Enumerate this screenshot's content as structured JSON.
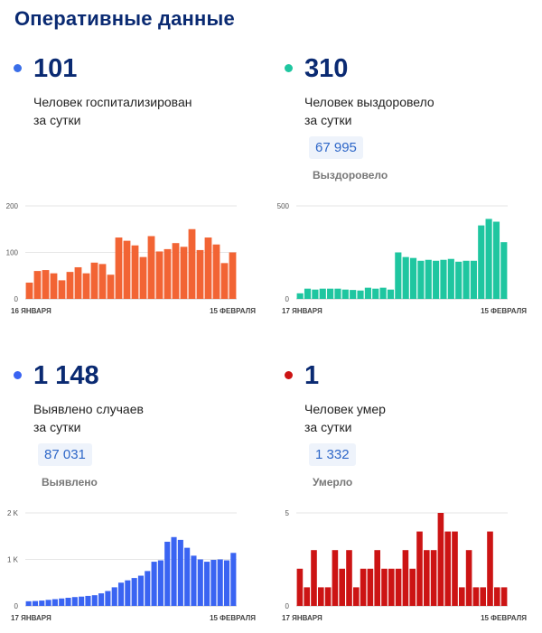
{
  "header": {
    "title": "Оперативные данные"
  },
  "panels": [
    {
      "id": "hospitalized",
      "number": "101",
      "caption_line1": "Человек госпитализирован",
      "caption_line2": "за сутки",
      "color": "#f26434",
      "dot_color": "#3a6ee8"
    },
    {
      "id": "recovered",
      "number": "310",
      "caption_line1": "Человек выздоровело",
      "caption_line2": "за сутки",
      "total": "67 995",
      "total_label": "Выздоровело",
      "color": "#1fc6a0",
      "dot_color": "#1fc6a0"
    },
    {
      "id": "cases",
      "number": "1 148",
      "caption_line1": "Выявлено случаев",
      "caption_line2": "за сутки",
      "total": "87 031",
      "total_label": "Выявлено",
      "color": "#3a64f2",
      "dot_color": "#3a64f2"
    },
    {
      "id": "deaths",
      "number": "1",
      "caption_line1": "Человек умер",
      "caption_line2": "за сутки",
      "total": "1 332",
      "total_label": "Умерло",
      "color": "#cc1414",
      "dot_color": "#cc1414"
    }
  ],
  "chart_data": [
    {
      "type": "bar",
      "yticks": [
        0,
        100,
        200
      ],
      "ytick_labels": [
        "0",
        "100",
        "200"
      ],
      "ylim": [
        0,
        200
      ],
      "x_start_label": "16 ЯНВАРЯ",
      "x_end_label": "15 ФЕВРАЛЯ",
      "values": [
        35,
        60,
        62,
        55,
        40,
        58,
        68,
        55,
        78,
        75,
        52,
        132,
        125,
        115,
        90,
        135,
        102,
        107,
        120,
        112,
        150,
        105,
        132,
        117,
        77,
        100
      ]
    },
    {
      "type": "bar",
      "yticks": [
        0,
        500
      ],
      "ytick_labels": [
        "0",
        "500"
      ],
      "ylim": [
        0,
        500
      ],
      "x_start_label": "17 ЯНВАРЯ",
      "x_end_label": "15 ФЕВРАЛЯ",
      "values": [
        30,
        55,
        50,
        55,
        55,
        55,
        50,
        48,
        45,
        60,
        55,
        60,
        50,
        250,
        225,
        220,
        205,
        210,
        205,
        210,
        215,
        200,
        205,
        205,
        395,
        430,
        415,
        305
      ]
    },
    {
      "type": "bar",
      "yticks": [
        0,
        1000,
        2000
      ],
      "ytick_labels": [
        "0",
        "1 K",
        "2 K"
      ],
      "ylim": [
        0,
        2000
      ],
      "x_start_label": "17 ЯНВАРЯ",
      "x_end_label": "15 ФЕВРАЛЯ",
      "values": [
        100,
        105,
        115,
        130,
        145,
        160,
        175,
        190,
        200,
        215,
        230,
        270,
        320,
        400,
        500,
        550,
        600,
        650,
        750,
        950,
        980,
        1380,
        1480,
        1420,
        1250,
        1080,
        1000,
        950,
        990,
        1000,
        980,
        1140
      ]
    },
    {
      "type": "bar",
      "yticks": [
        0,
        5
      ],
      "ytick_labels": [
        "0",
        "5"
      ],
      "ylim": [
        0,
        5
      ],
      "x_start_label": "17 ЯНВАРЯ",
      "x_end_label": "15 ФЕВРАЛЯ",
      "values": [
        2,
        1,
        3,
        1,
        1,
        3,
        2,
        3,
        1,
        2,
        2,
        3,
        2,
        2,
        2,
        3,
        2,
        4,
        3,
        3,
        5,
        4,
        4,
        1,
        3,
        1,
        1,
        4,
        1,
        1
      ]
    }
  ]
}
